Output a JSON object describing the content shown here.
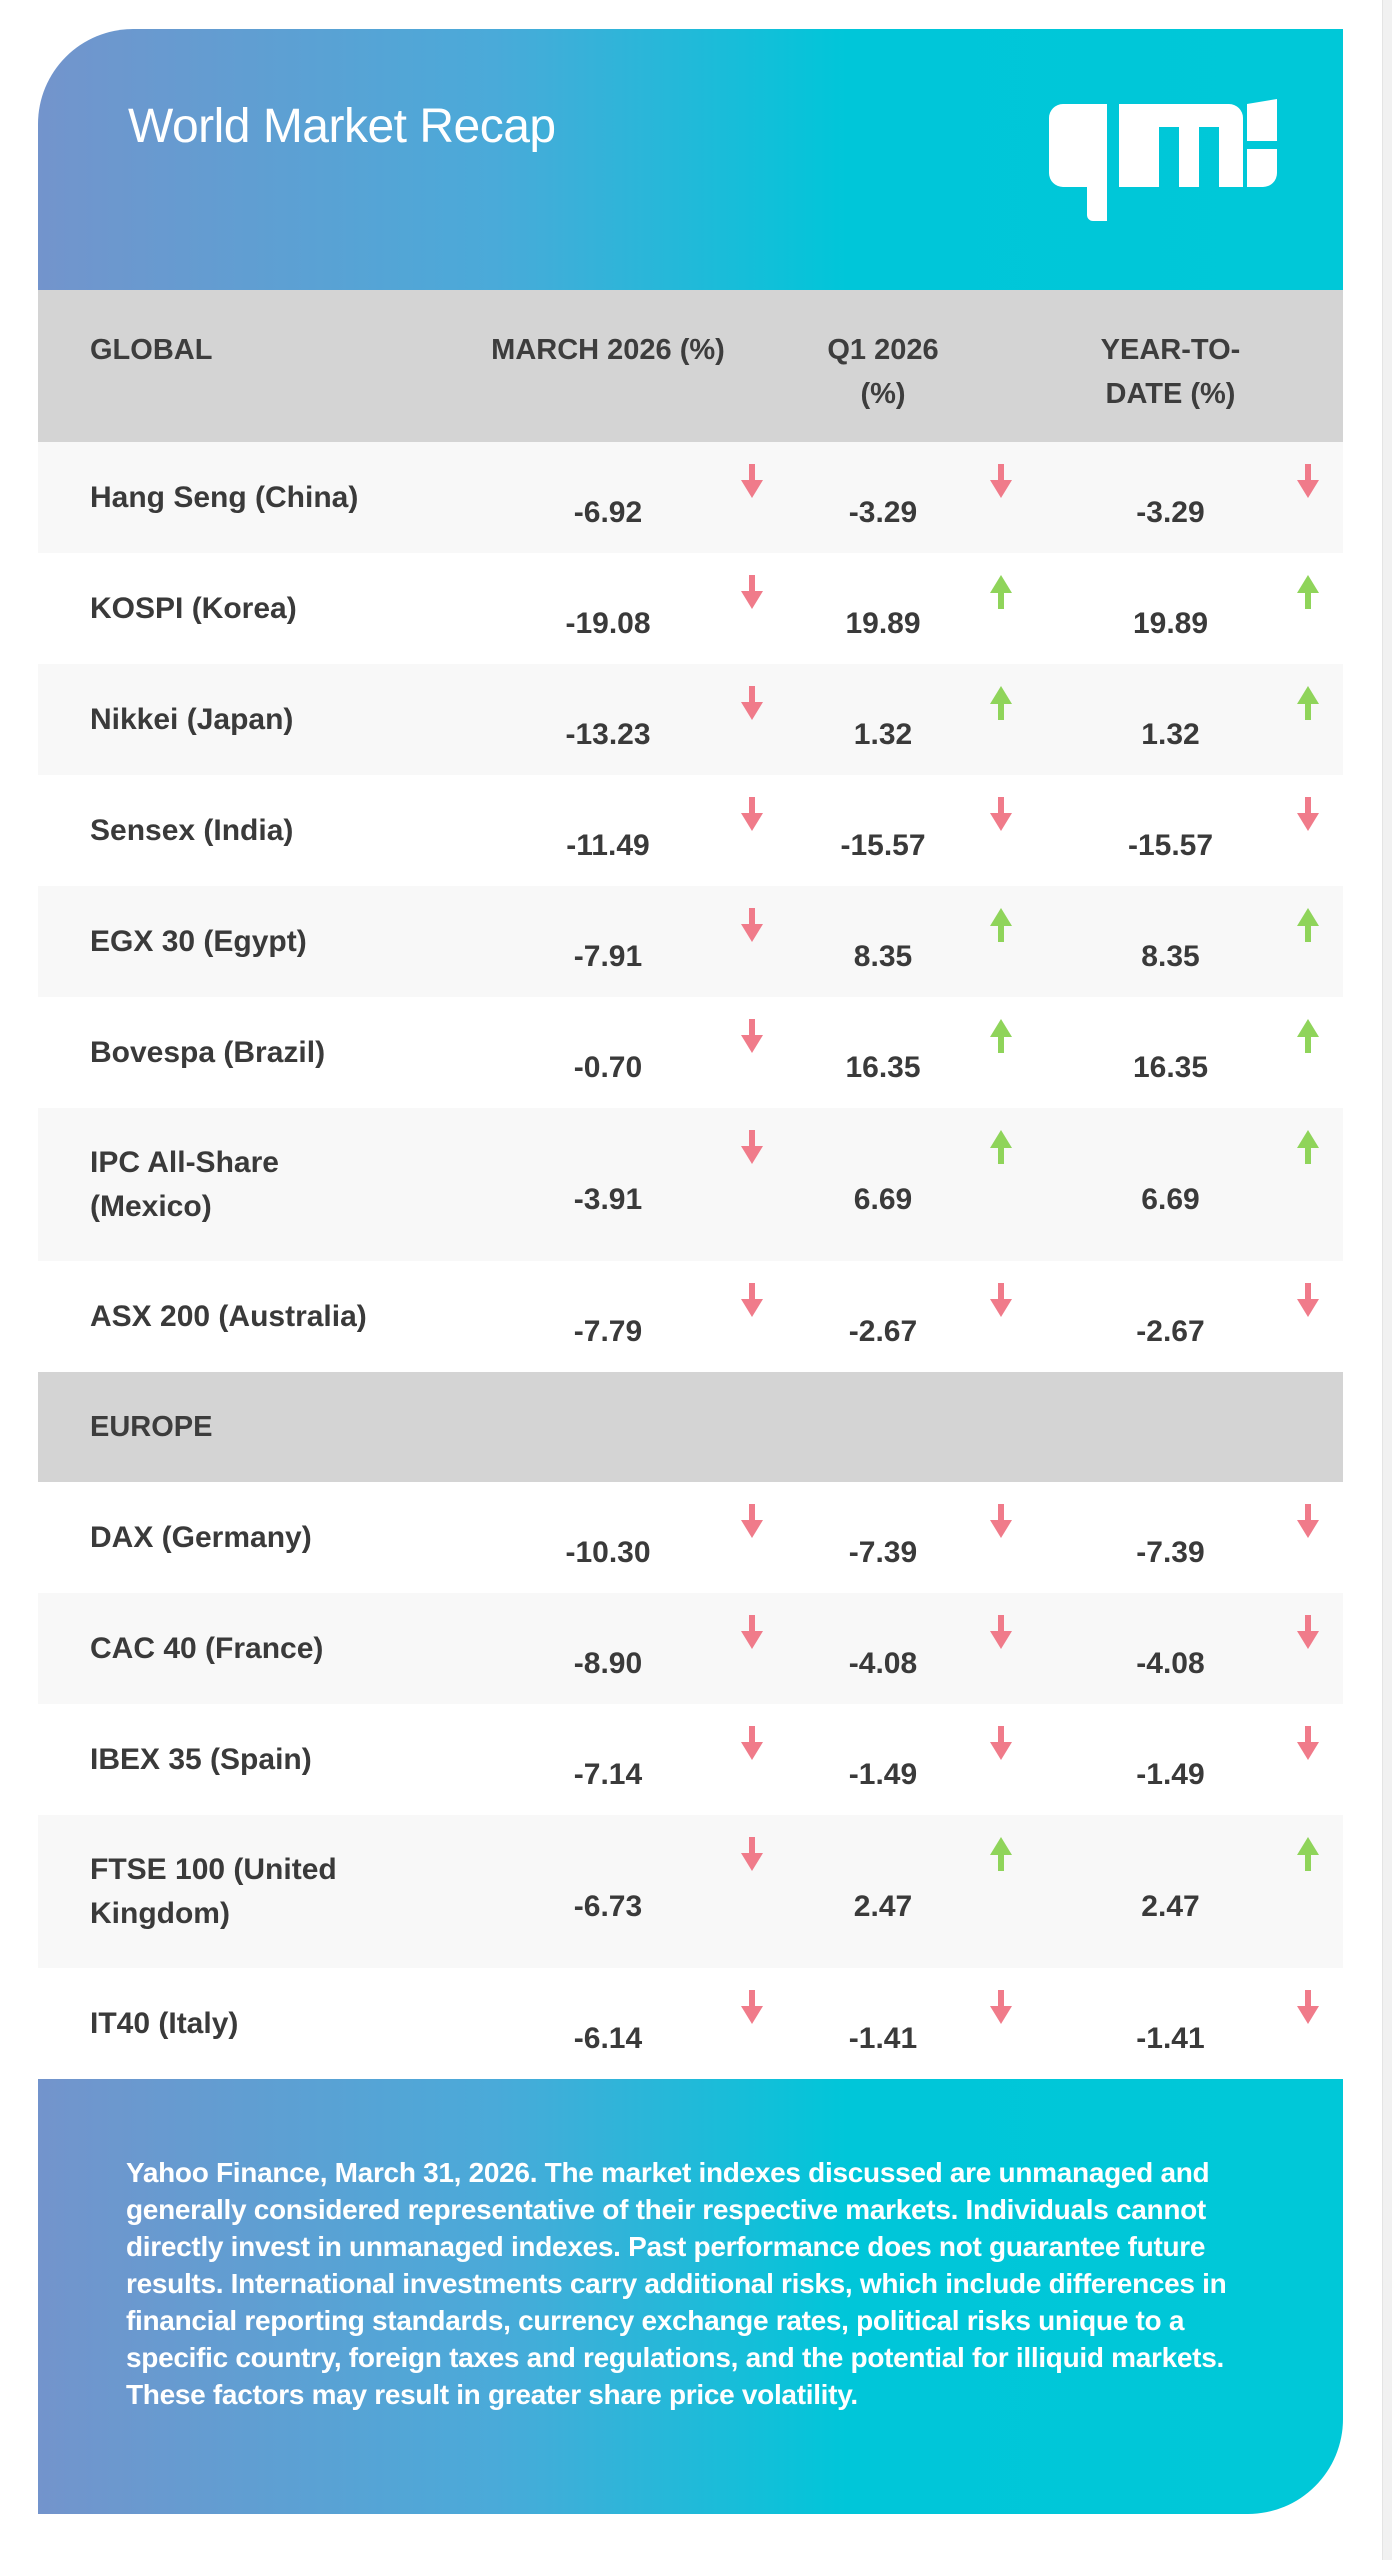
{
  "header": {
    "title": "World Market Recap",
    "logo_text": "qmi"
  },
  "columns": {
    "name": "GLOBAL",
    "march": "MARCH 2026 (%)",
    "q1": "Q1 2026 (%)",
    "ytd": "YEAR-TO-DATE (%)"
  },
  "colors": {
    "up": "#8fd45a",
    "down": "#f07b8a",
    "gradient_start": "#7394cc",
    "gradient_end": "#00c8d8"
  },
  "global": [
    {
      "name": "Hang Seng (China)",
      "march": "-6.92",
      "march_dir": "down",
      "q1": "-3.29",
      "q1_dir": "down",
      "ytd": "-3.29",
      "ytd_dir": "down"
    },
    {
      "name": "KOSPI (Korea)",
      "march": "-19.08",
      "march_dir": "down",
      "q1": "19.89",
      "q1_dir": "up",
      "ytd": "19.89",
      "ytd_dir": "up"
    },
    {
      "name": "Nikkei (Japan)",
      "march": "-13.23",
      "march_dir": "down",
      "q1": "1.32",
      "q1_dir": "up",
      "ytd": "1.32",
      "ytd_dir": "up"
    },
    {
      "name": "Sensex (India)",
      "march": "-11.49",
      "march_dir": "down",
      "q1": "-15.57",
      "q1_dir": "down",
      "ytd": "-15.57",
      "ytd_dir": "down"
    },
    {
      "name": "EGX 30 (Egypt)",
      "march": "-7.91",
      "march_dir": "down",
      "q1": "8.35",
      "q1_dir": "up",
      "ytd": "8.35",
      "ytd_dir": "up"
    },
    {
      "name": "Bovespa (Brazil)",
      "march": "-0.70",
      "march_dir": "down",
      "q1": "16.35",
      "q1_dir": "up",
      "ytd": "16.35",
      "ytd_dir": "up"
    },
    {
      "name": "IPC All-Share (Mexico)",
      "march": "-3.91",
      "march_dir": "down",
      "q1": "6.69",
      "q1_dir": "up",
      "ytd": "6.69",
      "ytd_dir": "up"
    },
    {
      "name": "ASX 200 (Australia)",
      "march": "-7.79",
      "march_dir": "down",
      "q1": "-2.67",
      "q1_dir": "down",
      "ytd": "-2.67",
      "ytd_dir": "down"
    }
  ],
  "europe_label": "EUROPE",
  "europe": [
    {
      "name": "DAX (Germany)",
      "march": "-10.30",
      "march_dir": "down",
      "q1": "-7.39",
      "q1_dir": "down",
      "ytd": "-7.39",
      "ytd_dir": "down"
    },
    {
      "name": "CAC 40 (France)",
      "march": "-8.90",
      "march_dir": "down",
      "q1": "-4.08",
      "q1_dir": "down",
      "ytd": "-4.08",
      "ytd_dir": "down"
    },
    {
      "name": "IBEX 35 (Spain)",
      "march": "-7.14",
      "march_dir": "down",
      "q1": "-1.49",
      "q1_dir": "down",
      "ytd": "-1.49",
      "ytd_dir": "down"
    },
    {
      "name": "FTSE 100 (United Kingdom)",
      "march": "-6.73",
      "march_dir": "down",
      "q1": "2.47",
      "q1_dir": "up",
      "ytd": "2.47",
      "ytd_dir": "up"
    },
    {
      "name": "IT40 (Italy)",
      "march": "-6.14",
      "march_dir": "down",
      "q1": "-1.41",
      "q1_dir": "down",
      "ytd": "-1.41",
      "ytd_dir": "down"
    }
  ],
  "footer": {
    "disclaimer": "Yahoo Finance, March 31, 2026. The market indexes discussed are unmanaged and generally considered representative of their respective markets. Individuals cannot directly invest in unmanaged indexes. Past performance does not guarantee future results. International investments carry additional risks, which include differences in financial reporting standards, currency exchange rates, political risks unique to a specific country, foreign taxes and regulations, and the potential for illiquid markets. These factors may result in greater share price volatility."
  }
}
